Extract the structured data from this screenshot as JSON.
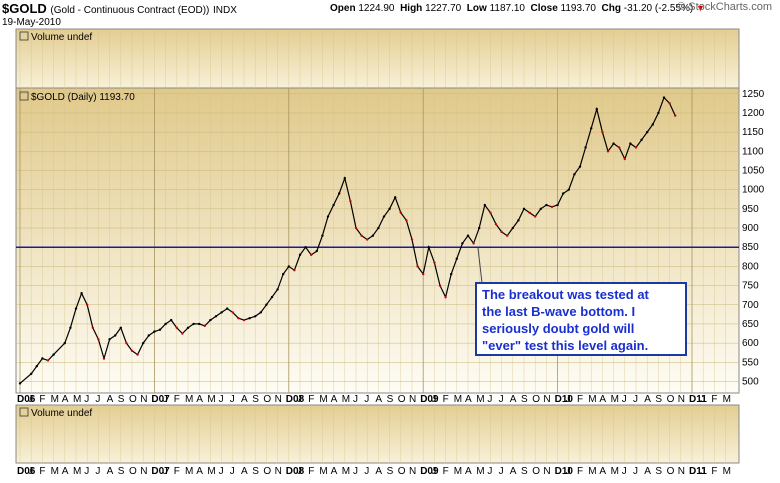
{
  "header": {
    "symbol": "$GOLD",
    "subtitle": "(Gold - Continuous Contract (EOD))",
    "exchange": "INDX",
    "date": "19-May-2010",
    "open_label": "Open",
    "open": "1224.90",
    "high_label": "High",
    "high": "1227.70",
    "low_label": "Low",
    "low": "1187.10",
    "close_label": "Close",
    "close": "1193.70",
    "chg_label": "Chg",
    "chg": "-31.20 (-2.55%)",
    "copyright": "© StockCharts.com"
  },
  "panels": {
    "top_volume_label": "Volume undef",
    "price_label": "$GOLD (Daily) 1193.70",
    "bottom_volume_label": "Volume undef"
  },
  "annotation": {
    "lines": [
      "The breakout was tested at",
      "the last B-wave bottom. I",
      "seriously doubt gold will",
      "\"ever\" test this level again."
    ]
  },
  "chart_data": {
    "type": "line",
    "title": "$GOLD (Daily) 1193.70",
    "x_axis_months": [
      "D06",
      "J",
      "F",
      "M",
      "A",
      "M",
      "J",
      "J",
      "A",
      "S",
      "O",
      "N",
      "D07",
      "J",
      "F",
      "M",
      "A",
      "M",
      "J",
      "J",
      "A",
      "S",
      "O",
      "N",
      "D08",
      "J",
      "F",
      "M",
      "A",
      "M",
      "J",
      "J",
      "A",
      "S",
      "O",
      "N",
      "D09",
      "J",
      "F",
      "M",
      "A",
      "M",
      "J",
      "J",
      "A",
      "S",
      "O",
      "N",
      "D10",
      "J",
      "F",
      "M",
      "A",
      "M",
      "J",
      "J",
      "A",
      "S",
      "O",
      "N",
      "D11",
      "J",
      "F",
      "M"
    ],
    "yticks": [
      500,
      550,
      600,
      650,
      700,
      750,
      800,
      850,
      900,
      950,
      1000,
      1050,
      1100,
      1150,
      1200,
      1250
    ],
    "ylim": [
      470,
      1265
    ],
    "horizontal_line": 850,
    "colors": {
      "line": "#000000",
      "down": "#cc0000",
      "hline": "#1a1aa0",
      "bg_top": "#e2cc8f",
      "bg_bottom": "#fdfbf2"
    },
    "series": [
      {
        "values": [
          [
            0,
            495
          ],
          [
            2,
            520
          ],
          [
            3,
            540
          ],
          [
            4,
            560
          ],
          [
            5,
            555
          ],
          [
            6,
            570
          ],
          [
            8,
            600
          ],
          [
            9,
            640
          ],
          [
            10,
            690
          ],
          [
            11,
            730
          ],
          [
            12,
            700
          ],
          [
            13,
            640
          ],
          [
            14,
            610
          ],
          [
            15,
            560
          ],
          [
            16,
            610
          ],
          [
            17,
            620
          ],
          [
            18,
            640
          ],
          [
            19,
            600
          ],
          [
            20,
            580
          ],
          [
            21,
            570
          ],
          [
            22,
            600
          ],
          [
            23,
            620
          ],
          [
            24,
            630
          ],
          [
            25,
            635
          ],
          [
            26,
            650
          ],
          [
            27,
            660
          ],
          [
            28,
            640
          ],
          [
            29,
            625
          ],
          [
            30,
            640
          ],
          [
            31,
            650
          ],
          [
            32,
            650
          ],
          [
            33,
            645
          ],
          [
            34,
            660
          ],
          [
            35,
            670
          ],
          [
            36,
            680
          ],
          [
            37,
            690
          ],
          [
            38,
            680
          ],
          [
            39,
            665
          ],
          [
            40,
            660
          ],
          [
            41,
            665
          ],
          [
            42,
            670
          ],
          [
            43,
            680
          ],
          [
            44,
            700
          ],
          [
            45,
            720
          ],
          [
            46,
            740
          ],
          [
            47,
            780
          ],
          [
            48,
            800
          ],
          [
            49,
            790
          ],
          [
            50,
            830
          ],
          [
            51,
            850
          ],
          [
            52,
            830
          ],
          [
            53,
            840
          ],
          [
            54,
            880
          ],
          [
            55,
            930
          ],
          [
            56,
            960
          ],
          [
            57,
            990
          ],
          [
            58,
            1030
          ],
          [
            59,
            970
          ],
          [
            60,
            900
          ],
          [
            61,
            880
          ],
          [
            62,
            870
          ],
          [
            63,
            880
          ],
          [
            64,
            900
          ],
          [
            65,
            930
          ],
          [
            66,
            950
          ],
          [
            67,
            980
          ],
          [
            68,
            940
          ],
          [
            69,
            920
          ],
          [
            70,
            870
          ],
          [
            71,
            800
          ],
          [
            72,
            780
          ],
          [
            73,
            850
          ],
          [
            74,
            810
          ],
          [
            75,
            750
          ],
          [
            76,
            720
          ],
          [
            77,
            780
          ],
          [
            78,
            820
          ],
          [
            79,
            860
          ],
          [
            80,
            880
          ],
          [
            81,
            860
          ],
          [
            82,
            900
          ],
          [
            83,
            960
          ],
          [
            84,
            940
          ],
          [
            85,
            910
          ],
          [
            86,
            890
          ],
          [
            87,
            880
          ],
          [
            88,
            900
          ],
          [
            89,
            920
          ],
          [
            90,
            950
          ],
          [
            91,
            940
          ],
          [
            92,
            930
          ],
          [
            93,
            950
          ],
          [
            94,
            960
          ],
          [
            95,
            955
          ],
          [
            96,
            960
          ],
          [
            97,
            990
          ],
          [
            98,
            1000
          ],
          [
            99,
            1040
          ],
          [
            100,
            1060
          ],
          [
            101,
            1110
          ],
          [
            102,
            1160
          ],
          [
            103,
            1210
          ],
          [
            104,
            1150
          ],
          [
            105,
            1100
          ],
          [
            106,
            1120
          ],
          [
            107,
            1110
          ],
          [
            108,
            1080
          ],
          [
            109,
            1120
          ],
          [
            110,
            1110
          ],
          [
            111,
            1130
          ],
          [
            112,
            1150
          ],
          [
            113,
            1170
          ],
          [
            114,
            1200
          ],
          [
            115,
            1240
          ],
          [
            116,
            1225
          ],
          [
            117,
            1193
          ]
        ]
      }
    ]
  }
}
